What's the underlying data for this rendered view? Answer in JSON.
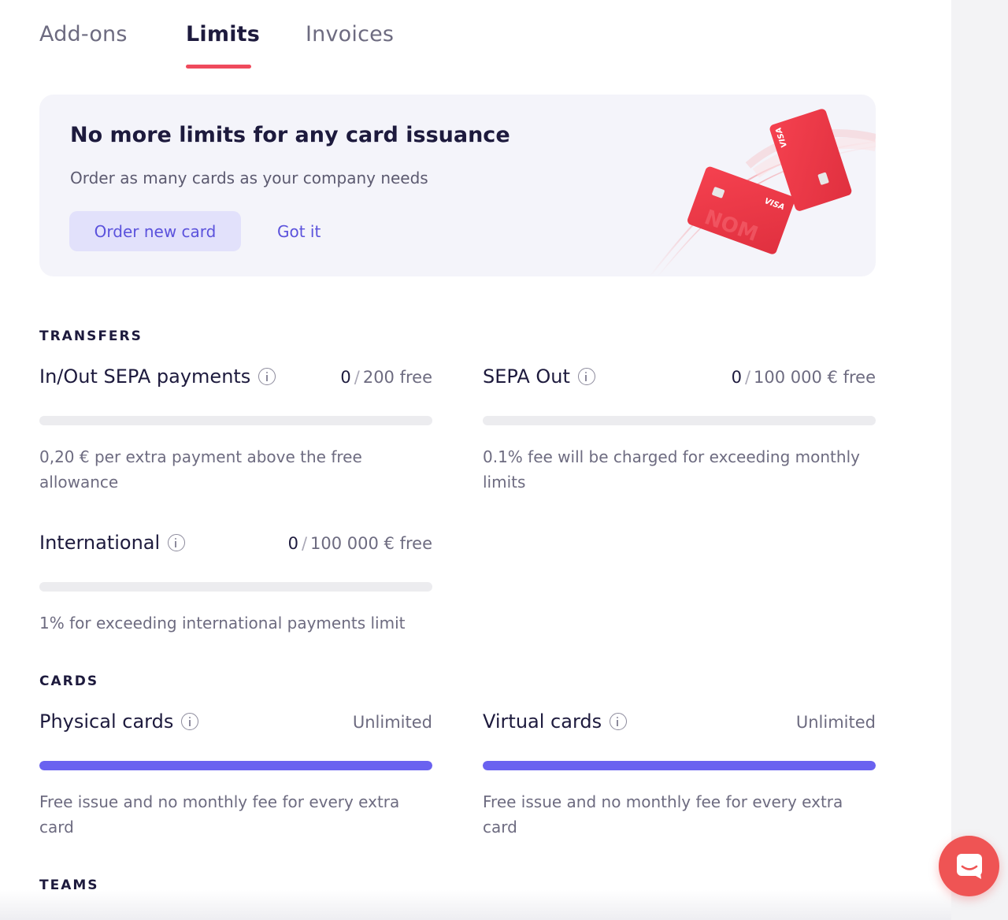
{
  "tabs": [
    {
      "label": "Add-ons",
      "active": false
    },
    {
      "label": "Limits",
      "active": true
    },
    {
      "label": "Invoices",
      "active": false
    }
  ],
  "promo": {
    "title": "No more limits for any card issuance",
    "subtitle": "Order as many cards as your company needs",
    "primary_button": "Order new card",
    "secondary_button": "Got it",
    "card_brand": "VISA",
    "card_watermark": "NOM"
  },
  "sections": {
    "transfers": {
      "title": "TRANSFERS",
      "items": [
        {
          "name": "In/Out SEPA payments",
          "used": "0",
          "limit": "200 free",
          "progress": 0,
          "description": "0,20 € per extra payment above the free allowance"
        },
        {
          "name": "SEPA Out",
          "used": "0",
          "limit": "100 000 € free",
          "progress": 0,
          "description": "0.1% fee will be charged for exceeding monthly limits"
        },
        {
          "name": "International",
          "used": "0",
          "limit": "100 000 € free",
          "progress": 0,
          "description": "1% for exceeding international payments limit"
        }
      ]
    },
    "cards": {
      "title": "CARDS",
      "items": [
        {
          "name": "Physical cards",
          "usage": "Unlimited",
          "progress": 1,
          "description": "Free issue and no monthly fee for every extra card"
        },
        {
          "name": "Virtual cards",
          "usage": "Unlimited",
          "progress": 1,
          "description": "Free issue and no monthly fee for every extra card"
        }
      ]
    },
    "teams": {
      "title": "TEAMS"
    }
  },
  "colors": {
    "accent": "#ef4a5c",
    "primary": "#5b52dc",
    "progress": "#6a62f0",
    "chat": "#ef5454"
  },
  "icons": {
    "info": "info-icon",
    "chat": "chat-icon"
  }
}
